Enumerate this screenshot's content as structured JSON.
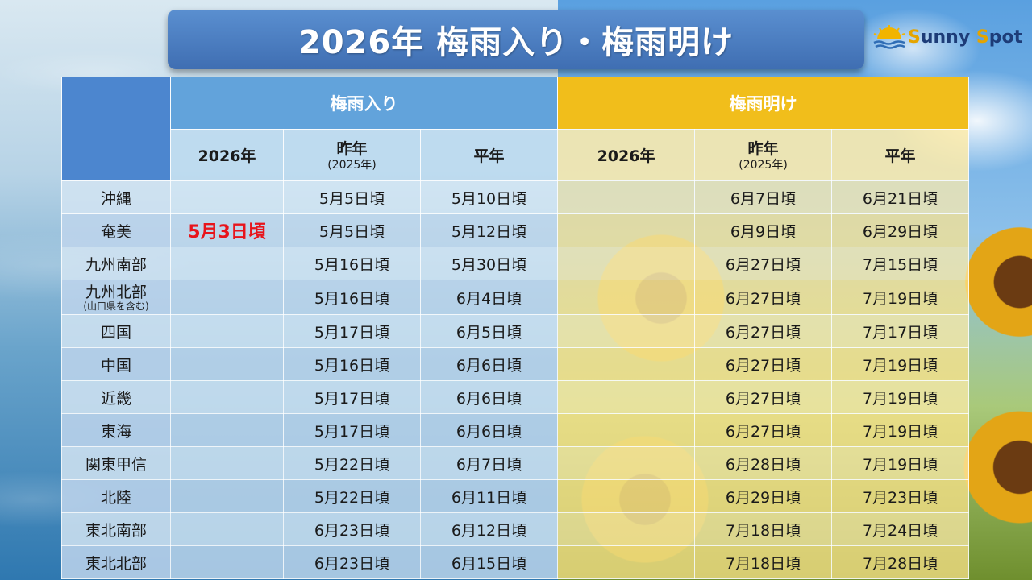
{
  "title": "2026年 梅雨入り・梅雨明け",
  "logo": {
    "part1_initial": "S",
    "part1_rest": "unny ",
    "part2_initial": "S",
    "part2_rest": "pot"
  },
  "table": {
    "group_headers": {
      "rainy_start": "梅雨入り",
      "rainy_end": "梅雨明け"
    },
    "sub_headers": {
      "this_year": "2026年",
      "last_year": "昨年",
      "last_year_note": "(2025年)",
      "normal": "平年"
    },
    "rows": [
      {
        "region": "沖縄",
        "note": "",
        "start_2026": "",
        "start_last": "5月5日頃",
        "start_normal": "5月10日頃",
        "end_2026": "",
        "end_last": "6月7日頃",
        "end_normal": "6月21日頃"
      },
      {
        "region": "奄美",
        "note": "",
        "start_2026": "5月3日頃",
        "start_last": "5月5日頃",
        "start_normal": "5月12日頃",
        "end_2026": "",
        "end_last": "6月9日頃",
        "end_normal": "6月29日頃"
      },
      {
        "region": "九州南部",
        "note": "",
        "start_2026": "",
        "start_last": "5月16日頃",
        "start_normal": "5月30日頃",
        "end_2026": "",
        "end_last": "6月27日頃",
        "end_normal": "7月15日頃"
      },
      {
        "region": "九州北部",
        "note": "(山口県を含む)",
        "start_2026": "",
        "start_last": "5月16日頃",
        "start_normal": "6月4日頃",
        "end_2026": "",
        "end_last": "6月27日頃",
        "end_normal": "7月19日頃"
      },
      {
        "region": "四国",
        "note": "",
        "start_2026": "",
        "start_last": "5月17日頃",
        "start_normal": "6月5日頃",
        "end_2026": "",
        "end_last": "6月27日頃",
        "end_normal": "7月17日頃"
      },
      {
        "region": "中国",
        "note": "",
        "start_2026": "",
        "start_last": "5月16日頃",
        "start_normal": "6月6日頃",
        "end_2026": "",
        "end_last": "6月27日頃",
        "end_normal": "7月19日頃"
      },
      {
        "region": "近畿",
        "note": "",
        "start_2026": "",
        "start_last": "5月17日頃",
        "start_normal": "6月6日頃",
        "end_2026": "",
        "end_last": "6月27日頃",
        "end_normal": "7月19日頃"
      },
      {
        "region": "東海",
        "note": "",
        "start_2026": "",
        "start_last": "5月17日頃",
        "start_normal": "6月6日頃",
        "end_2026": "",
        "end_last": "6月27日頃",
        "end_normal": "7月19日頃"
      },
      {
        "region": "関東甲信",
        "note": "",
        "start_2026": "",
        "start_last": "5月22日頃",
        "start_normal": "6月7日頃",
        "end_2026": "",
        "end_last": "6月28日頃",
        "end_normal": "7月19日頃"
      },
      {
        "region": "北陸",
        "note": "",
        "start_2026": "",
        "start_last": "5月22日頃",
        "start_normal": "6月11日頃",
        "end_2026": "",
        "end_last": "6月29日頃",
        "end_normal": "7月23日頃"
      },
      {
        "region": "東北南部",
        "note": "",
        "start_2026": "",
        "start_last": "6月23日頃",
        "start_normal": "6月12日頃",
        "end_2026": "",
        "end_last": "7月18日頃",
        "end_normal": "7月24日頃"
      },
      {
        "region": "東北北部",
        "note": "",
        "start_2026": "",
        "start_last": "6月23日頃",
        "start_normal": "6月15日頃",
        "end_2026": "",
        "end_last": "7月18日頃",
        "end_normal": "7月28日頃"
      }
    ]
  },
  "colors": {
    "highlight": "#e8141b",
    "rainy_header": "#62a3db",
    "sunny_header": "#f1be1b",
    "title_bg": "#4a7cc0"
  }
}
